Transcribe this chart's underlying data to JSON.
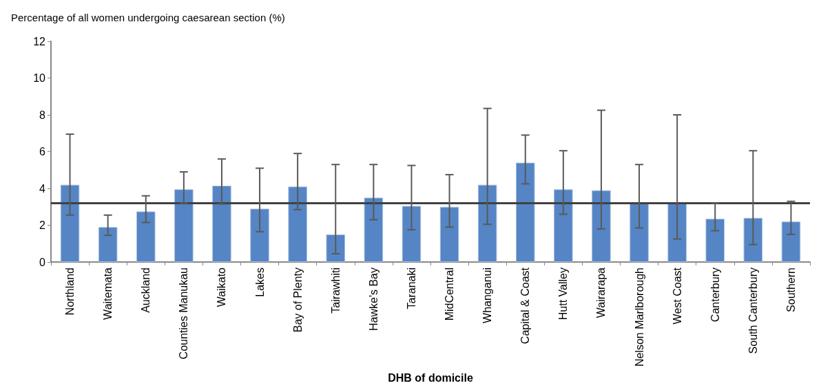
{
  "chart_data": {
    "type": "bar",
    "ylabel": "Percentage of all women undergoing caesarean section (%)",
    "xlabel": "DHB of domicile",
    "categories": [
      "Northland",
      "Waitemata",
      "Auckland",
      "Counties Manukau",
      "Waikato",
      "Lakes",
      "Bay of Plenty",
      "Tairawhiti",
      "Hawke's Bay",
      "Taranaki",
      "MidCentral",
      "Whanganui",
      "Capital & Coast",
      "Hutt Valley",
      "Wairarapa",
      "Nelson Marlborough",
      "West Coast",
      "Canterbury",
      "South Canterbury",
      "Southern"
    ],
    "values": [
      4.2,
      1.9,
      2.75,
      3.95,
      4.15,
      2.9,
      4.1,
      1.5,
      3.5,
      3.05,
      3.0,
      4.2,
      5.4,
      3.95,
      3.9,
      3.2,
      3.2,
      2.35,
      2.4,
      2.2
    ],
    "errors": [
      [
        2.55,
        6.95
      ],
      [
        1.45,
        2.55
      ],
      [
        2.15,
        3.6
      ],
      [
        3.2,
        4.9
      ],
      [
        3.15,
        5.6
      ],
      [
        1.65,
        5.1
      ],
      [
        2.85,
        5.9
      ],
      [
        0.45,
        5.3
      ],
      [
        2.3,
        5.3
      ],
      [
        1.75,
        5.25
      ],
      [
        1.9,
        4.75
      ],
      [
        2.05,
        8.35
      ],
      [
        4.25,
        6.9
      ],
      [
        2.6,
        6.05
      ],
      [
        1.8,
        8.25
      ],
      [
        1.85,
        5.3
      ],
      [
        1.25,
        8.0
      ],
      [
        1.7,
        3.2
      ],
      [
        0.95,
        6.05
      ],
      [
        1.5,
        3.3
      ]
    ],
    "color": "#5585c4",
    "ylim": [
      0,
      12
    ],
    "yticks": [
      0,
      2,
      4,
      6,
      8,
      10,
      12
    ],
    "grid": false,
    "ref_lines": [
      {
        "axis": "y",
        "value": 3.2,
        "color": "#404040"
      }
    ]
  }
}
